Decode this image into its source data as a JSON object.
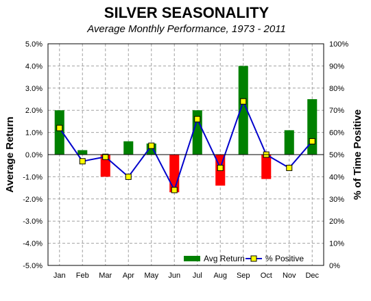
{
  "chart_data": {
    "type": "bar",
    "title": "SILVER SEASONALITY",
    "subtitle": "Average Monthly Performance, 1973 - 2011",
    "categories": [
      "Jan",
      "Feb",
      "Mar",
      "Apr",
      "May",
      "Jun",
      "Jul",
      "Aug",
      "Sep",
      "Oct",
      "Nov",
      "Dec"
    ],
    "y_left": {
      "label": "Average Return",
      "range": [
        -5.0,
        5.0
      ],
      "ticks": [
        "-5.0%",
        "-4.0%",
        "-3.0%",
        "-2.0%",
        "-1.0%",
        "0.0%",
        "1.0%",
        "2.0%",
        "3.0%",
        "4.0%",
        "5.0%"
      ]
    },
    "y_right": {
      "label": "% of Time Positive",
      "range": [
        0,
        100
      ],
      "ticks": [
        "0%",
        "10%",
        "20%",
        "30%",
        "40%",
        "50%",
        "60%",
        "70%",
        "80%",
        "90%",
        "100%"
      ]
    },
    "series": [
      {
        "name": "Avg Return",
        "type": "bar",
        "axis": "left",
        "values": [
          2.0,
          0.2,
          -1.0,
          0.6,
          0.5,
          -1.7,
          2.0,
          -1.4,
          4.0,
          -1.1,
          1.1,
          2.5
        ]
      },
      {
        "name": "% Positive",
        "type": "line",
        "axis": "right",
        "values": [
          62,
          47,
          49,
          40,
          54,
          34,
          66,
          44,
          74,
          50,
          44,
          56
        ]
      }
    ],
    "colors": {
      "positive_bar": "#008000",
      "negative_bar": "#ff0000",
      "line": "#0000cc",
      "marker_fill": "#ffff00",
      "marker_stroke": "#000000"
    },
    "grid": true,
    "legend_position": "bottom-right"
  }
}
